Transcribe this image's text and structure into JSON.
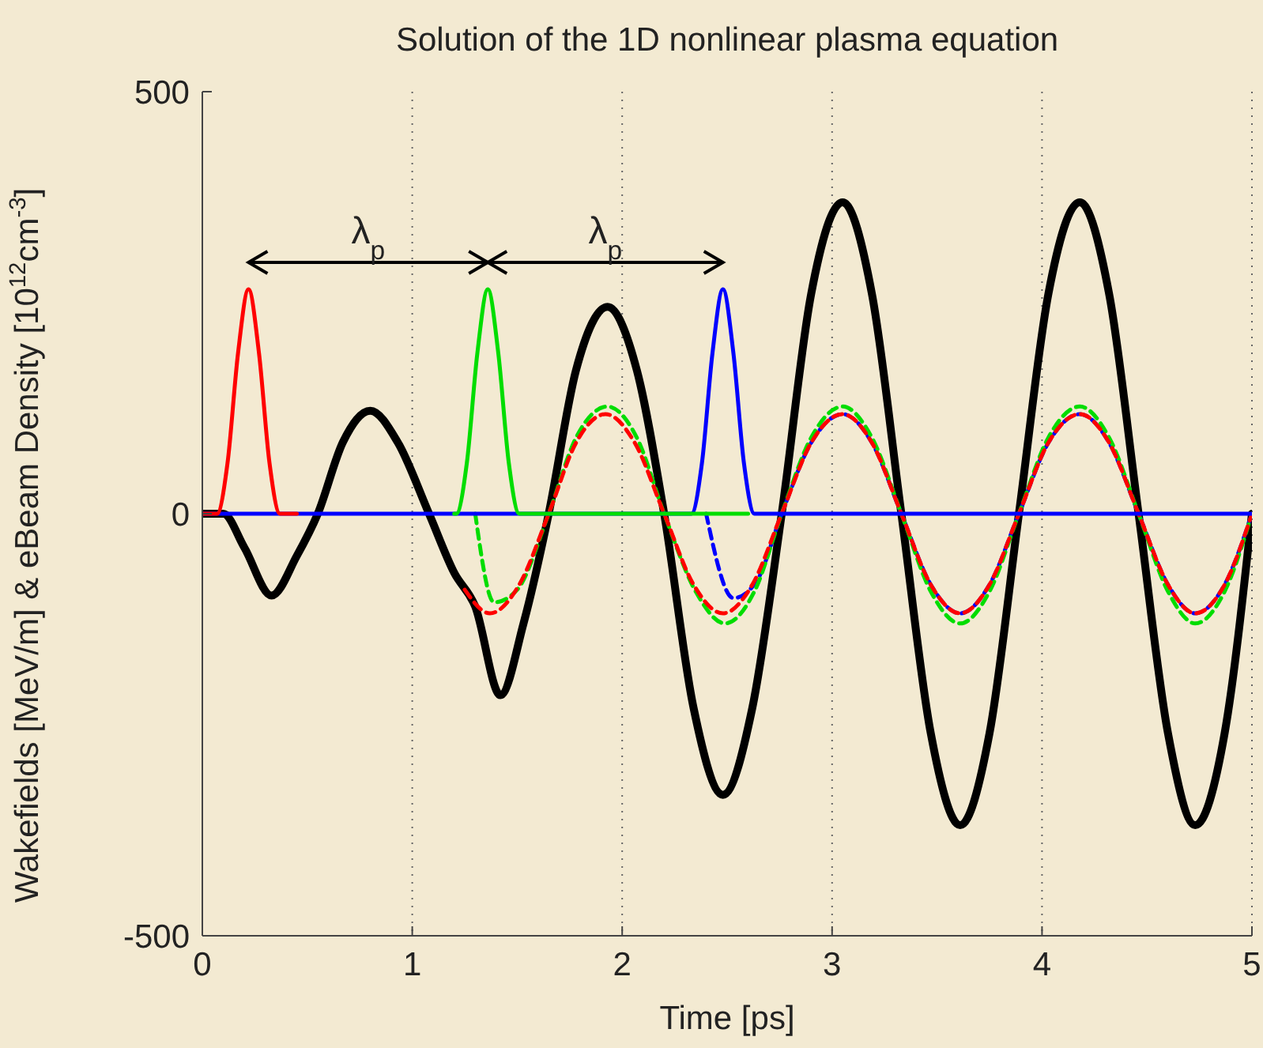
{
  "chart_data": {
    "type": "line",
    "title": "Solution of the 1D nonlinear plasma equation",
    "xlabel": "Time [ps]",
    "ylabel": "Wakefields [MeV/m] & eBeam Density [10$^{12}$cm$^{-3}$]",
    "xlim": [
      0,
      5
    ],
    "ylim": [
      -500,
      500
    ],
    "xticks": [
      0,
      1,
      2,
      3,
      4,
      5
    ],
    "yticks": [
      -500,
      0,
      500
    ],
    "grid": "x",
    "annotations": [
      "λ$_{p}$",
      "λ$_{p}$"
    ],
    "series": [
      {
        "color": "#ff0000",
        "line_style": "solid",
        "x": [
          0,
          0.07,
          0.12,
          0.17,
          0.22,
          0.27,
          0.32,
          0.37,
          0.45
        ],
        "values": [
          0,
          0,
          60,
          190,
          266,
          190,
          60,
          0,
          0
        ]
      },
      {
        "color": "#00dd00",
        "line_style": "solid",
        "x": [
          1.2,
          1.21,
          1.26,
          1.31,
          1.36,
          1.41,
          1.46,
          1.51,
          2.6
        ],
        "values": [
          0,
          0,
          60,
          190,
          266,
          190,
          60,
          0,
          0
        ]
      },
      {
        "color": "#0000ff",
        "line_style": "solid",
        "x": [
          0,
          2.33,
          2.38,
          2.43,
          2.48,
          2.53,
          2.58,
          2.63,
          5
        ],
        "values": [
          0,
          0,
          60,
          190,
          266,
          190,
          60,
          0,
          0
        ]
      },
      {
        "color": "#ff0000",
        "line_style": "dashed",
        "x": [
          1.25,
          1.37,
          1.51,
          1.65,
          1.78,
          1.92,
          2.06,
          2.2,
          2.34,
          2.48,
          2.62,
          2.76,
          2.9,
          3.05,
          3.19,
          3.33,
          3.47,
          3.61,
          3.75,
          3.89,
          4.03,
          4.18,
          4.32,
          4.46,
          4.6,
          4.73,
          4.87,
          5
        ],
        "values": [
          -90,
          -118,
          -84,
          0,
          84,
          118,
          84,
          0,
          -84,
          -118,
          -84,
          0,
          84,
          118,
          84,
          0,
          -84,
          -118,
          -84,
          0,
          84,
          118,
          84,
          0,
          -84,
          -118,
          -84,
          0
        ]
      },
      {
        "color": "#00dd00",
        "line_style": "dashed",
        "x": [
          1.3,
          1.39,
          1.5,
          1.65,
          1.78,
          1.93,
          2.07,
          2.2,
          2.35,
          2.49,
          2.63,
          2.76,
          2.9,
          3.05,
          3.19,
          3.33,
          3.47,
          3.61,
          3.75,
          3.89,
          4.03,
          4.18,
          4.32,
          4.46,
          4.6,
          4.73,
          4.87,
          5
        ],
        "values": [
          0,
          -105,
          -90,
          0,
          90,
          127,
          90,
          0,
          -92,
          -130,
          -92,
          0,
          90,
          127,
          90,
          0,
          -92,
          -130,
          -92,
          0,
          90,
          127,
          90,
          0,
          -92,
          -130,
          -92,
          0
        ]
      },
      {
        "color": "#0000ff",
        "line_style": "dashed",
        "x": [
          2.4,
          2.53,
          2.64,
          2.76,
          2.9,
          3.05,
          3.19,
          3.33,
          3.47,
          3.61,
          3.75,
          3.89,
          4.03,
          4.18,
          4.32,
          4.46,
          4.6,
          4.73,
          4.87,
          5
        ],
        "values": [
          0,
          -100,
          -80,
          0,
          84,
          118,
          84,
          0,
          -84,
          -118,
          -84,
          0,
          84,
          118,
          84,
          0,
          -84,
          -118,
          -84,
          0
        ]
      },
      {
        "color": "#000000",
        "line_style": "solid",
        "x": [
          0,
          0.1,
          0.2,
          0.33,
          0.45,
          0.55,
          0.67,
          0.8,
          0.93,
          1.08,
          1.2,
          1.3,
          1.42,
          1.53,
          1.65,
          1.78,
          1.93,
          2.07,
          2.2,
          2.34,
          2.48,
          2.62,
          2.76,
          2.9,
          3.05,
          3.19,
          3.33,
          3.47,
          3.61,
          3.75,
          3.89,
          4.03,
          4.18,
          4.32,
          4.46,
          4.6,
          4.73,
          4.87,
          5
        ],
        "values": [
          0,
          0,
          -40,
          -97,
          -50,
          0,
          85,
          122,
          85,
          0,
          -70,
          -110,
          -215,
          -130,
          0,
          170,
          245,
          170,
          0,
          -230,
          -333,
          -230,
          0,
          260,
          369,
          260,
          0,
          -260,
          -369,
          -260,
          0,
          260,
          369,
          260,
          0,
          -260,
          -369,
          -260,
          0
        ]
      }
    ]
  }
}
